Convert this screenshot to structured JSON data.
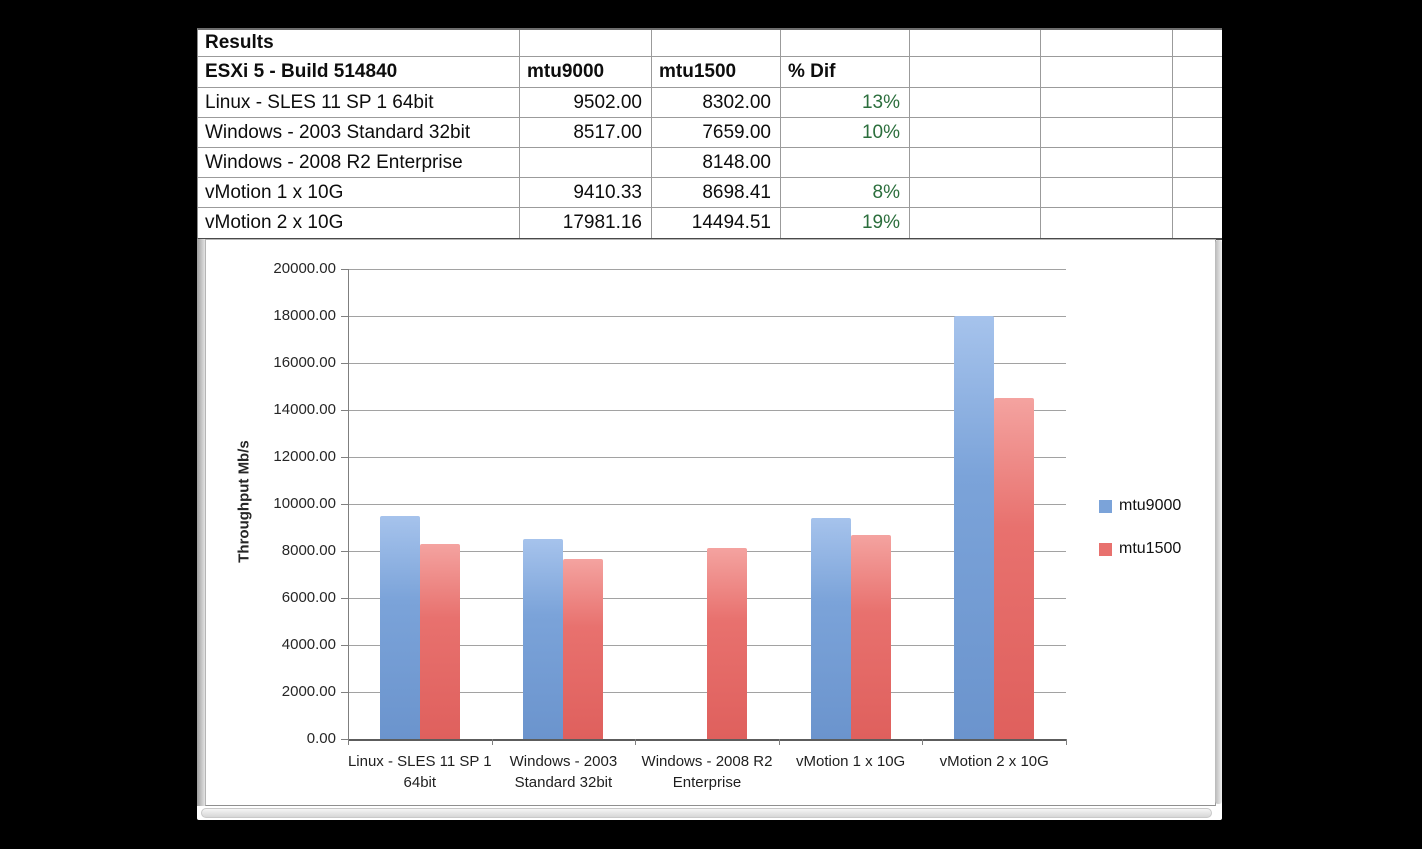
{
  "table": {
    "title": "Results",
    "columns": [
      "ESXi 5 - Build 514840",
      "mtu9000",
      "mtu1500",
      "% Dif"
    ],
    "rows": [
      {
        "label": "Linux - SLES 11 SP 1 64bit",
        "mtu9000": "9502.00",
        "mtu1500": "8302.00",
        "dif": "13%"
      },
      {
        "label": "Windows - 2003 Standard 32bit",
        "mtu9000": "8517.00",
        "mtu1500": "7659.00",
        "dif": "10%"
      },
      {
        "label": "Windows - 2008 R2 Enterprise",
        "mtu9000": "",
        "mtu1500": "8148.00",
        "dif": ""
      },
      {
        "label": "vMotion 1 x 10G",
        "mtu9000": "9410.33",
        "mtu1500": "8698.41",
        "dif": "8%"
      },
      {
        "label": "vMotion 2 x 10G",
        "mtu9000": "17981.16",
        "mtu1500": "14494.51",
        "dif": "19%"
      }
    ]
  },
  "chart_data": {
    "type": "bar",
    "title": "",
    "xlabel": "",
    "ylabel": "Throughput Mb/s",
    "categories": [
      "Linux - SLES 11 SP 1 64bit",
      "Windows - 2003 Standard 32bit",
      "Windows - 2008 R2 Enterprise",
      "vMotion 1 x 10G",
      "vMotion 2 x 10G"
    ],
    "series": [
      {
        "name": "mtu9000",
        "values": [
          9502.0,
          8517.0,
          null,
          9410.33,
          17981.16
        ]
      },
      {
        "name": "mtu1500",
        "values": [
          8302.0,
          7659.0,
          8148.0,
          8698.41,
          14494.51
        ]
      }
    ],
    "ylim": [
      0,
      20000
    ],
    "ytick_step": 2000,
    "yticks": [
      "20000.00",
      "18000.00",
      "16000.00",
      "14000.00",
      "12000.00",
      "10000.00",
      "8000.00",
      "6000.00",
      "4000.00",
      "2000.00",
      "0.00"
    ],
    "grid": true,
    "legend_position": "right",
    "legend": [
      "mtu9000",
      "mtu1500"
    ]
  },
  "colors": {
    "percent_green": "#2b6e3c",
    "series_blue": "#7ba3d9",
    "series_blue_light": "#a6c3ec",
    "series_blue_dark": "#6b94cd",
    "series_red": "#e8716e",
    "series_red_light": "#f4a3a0",
    "series_red_dark": "#df605d",
    "gridline": "#a2a2a2",
    "axis": "#7f7f7f"
  }
}
